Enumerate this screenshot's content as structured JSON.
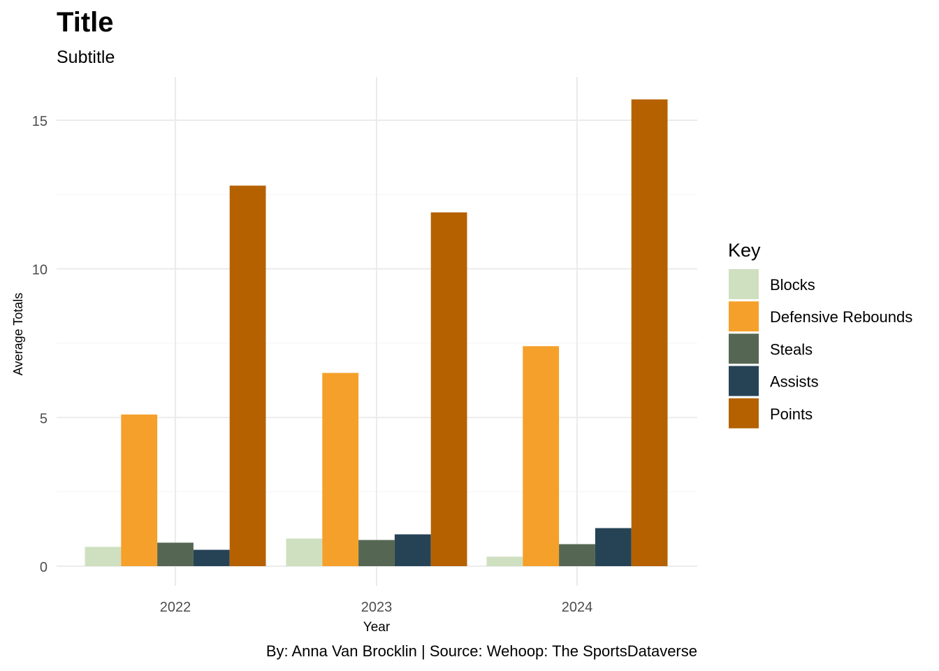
{
  "chart_data": {
    "type": "bar",
    "title": "Title",
    "subtitle": "Subtitle",
    "xlabel": "Year",
    "ylabel": "Average Totals",
    "caption": "By: Anna Van Brocklin | Source: Wehoop: The SportsDataverse",
    "categories": [
      "2022",
      "2023",
      "2024"
    ],
    "yticks": [
      0,
      5,
      10,
      15
    ],
    "ylim": [
      0,
      15.6
    ],
    "grid": true,
    "legend": {
      "title": "Key",
      "position": "right"
    },
    "series": [
      {
        "name": "Blocks",
        "color": "#cfe0c0",
        "values": [
          0.65,
          0.93,
          0.32
        ]
      },
      {
        "name": "Defensive Rebounds",
        "color": "#f5a02a",
        "values": [
          5.1,
          6.5,
          7.4
        ]
      },
      {
        "name": "Steals",
        "color": "#556752",
        "values": [
          0.79,
          0.88,
          0.74
        ]
      },
      {
        "name": "Assists",
        "color": "#264356",
        "values": [
          0.55,
          1.07,
          1.28
        ]
      },
      {
        "name": "Points",
        "color": "#b56100",
        "values": [
          12.8,
          11.9,
          15.7
        ]
      }
    ]
  }
}
